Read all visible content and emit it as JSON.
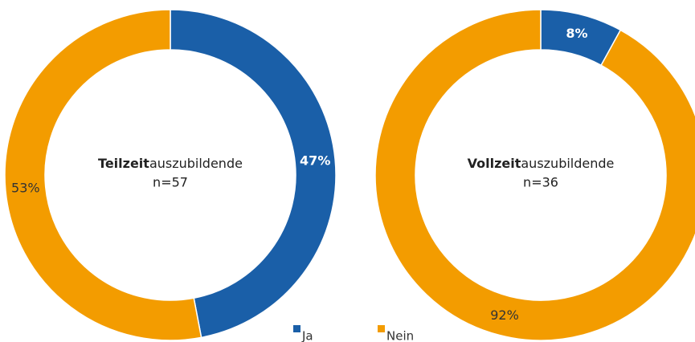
{
  "charts": [
    {
      "type": "pie",
      "values": [
        47,
        53
      ],
      "value_labels": [
        "47%",
        "53%"
      ],
      "colors": [
        "#1a5fa8",
        "#f39c00"
      ],
      "center_bold": "Teilzeit",
      "center_text": "auszubildende",
      "sample": "n=57"
    },
    {
      "type": "pie",
      "values": [
        8,
        92
      ],
      "value_labels": [
        "8%",
        "92%"
      ],
      "colors": [
        "#1a5fa8",
        "#f39c00"
      ],
      "center_bold": "Vollzeit",
      "center_text": "auszubildende",
      "sample": "n=36"
    }
  ],
  "legend": [
    "Ja",
    "Nein"
  ]
}
